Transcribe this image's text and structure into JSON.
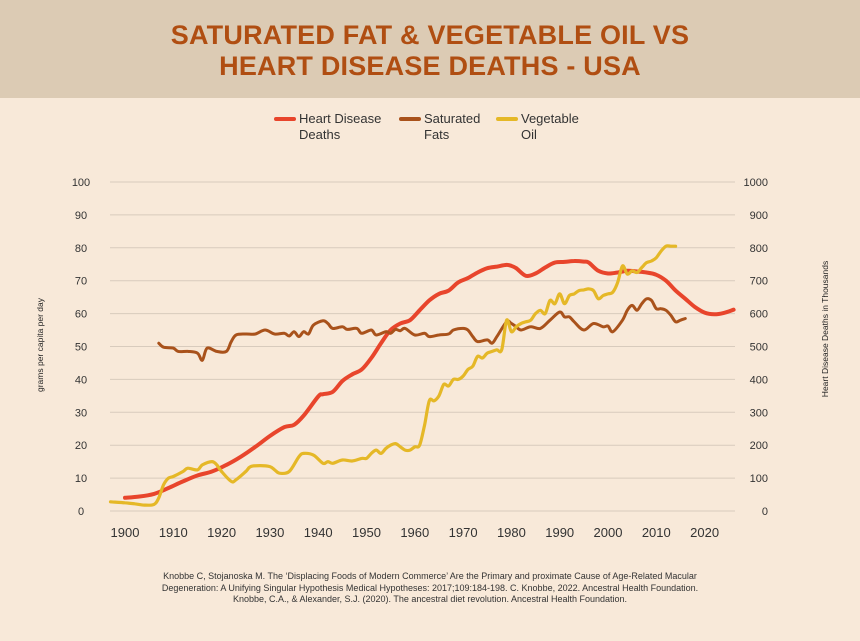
{
  "chart_data": {
    "type": "line",
    "title": "SATURATED FAT & VEGETABLE OIL VS\nHEART DISEASE DEATHS - USA",
    "ylabel_left": "grams per capita per day",
    "ylabel_right": "Heart Disease Deaths in Thousands",
    "xlim": [
      1897,
      2026
    ],
    "ylim_left": [
      0,
      100
    ],
    "ylim_right": [
      0,
      1000
    ],
    "x_ticks": [
      1900,
      1910,
      1920,
      1930,
      1940,
      1950,
      1960,
      1970,
      1980,
      1990,
      2000,
      2010,
      2020
    ],
    "y_ticks_left": [
      0,
      10,
      20,
      30,
      40,
      50,
      60,
      70,
      80,
      90,
      100
    ],
    "y_ticks_right": [
      0,
      100,
      200,
      300,
      400,
      500,
      600,
      700,
      800,
      900,
      1000
    ],
    "grid": true,
    "legend_position": "top",
    "legend": [
      {
        "label_lines": [
          "Heart Disease",
          "Deaths"
        ],
        "color": "#e8452c"
      },
      {
        "label_lines": [
          "Saturated",
          "Fats"
        ],
        "color": "#a9521b"
      },
      {
        "label_lines": [
          "Vegetable",
          "Oil"
        ],
        "color": "#e5b827"
      }
    ],
    "series": [
      {
        "name": "Heart Disease Deaths",
        "axis": "right",
        "color": "#e8452c",
        "points": [
          [
            1900,
            40
          ],
          [
            1903,
            44
          ],
          [
            1906,
            52
          ],
          [
            1909,
            70
          ],
          [
            1912,
            90
          ],
          [
            1915,
            108
          ],
          [
            1918,
            120
          ],
          [
            1921,
            140
          ],
          [
            1924,
            165
          ],
          [
            1927,
            195
          ],
          [
            1930,
            228
          ],
          [
            1933,
            255
          ],
          [
            1935,
            262
          ],
          [
            1937,
            290
          ],
          [
            1940,
            348
          ],
          [
            1941,
            355
          ],
          [
            1943,
            362
          ],
          [
            1945,
            395
          ],
          [
            1947,
            415
          ],
          [
            1949,
            430
          ],
          [
            1951,
            465
          ],
          [
            1953,
            510
          ],
          [
            1955,
            550
          ],
          [
            1957,
            570
          ],
          [
            1959,
            580
          ],
          [
            1961,
            610
          ],
          [
            1963,
            640
          ],
          [
            1965,
            660
          ],
          [
            1967,
            670
          ],
          [
            1969,
            695
          ],
          [
            1971,
            708
          ],
          [
            1973,
            725
          ],
          [
            1975,
            738
          ],
          [
            1977,
            743
          ],
          [
            1979,
            748
          ],
          [
            1980,
            745
          ],
          [
            1981,
            738
          ],
          [
            1983,
            715
          ],
          [
            1985,
            722
          ],
          [
            1987,
            740
          ],
          [
            1989,
            755
          ],
          [
            1991,
            757
          ],
          [
            1993,
            760
          ],
          [
            1995,
            758
          ],
          [
            1996,
            755
          ],
          [
            1998,
            730
          ],
          [
            2000,
            722
          ],
          [
            2002,
            725
          ],
          [
            2004,
            730
          ],
          [
            2006,
            728
          ],
          [
            2008,
            725
          ],
          [
            2010,
            718
          ],
          [
            2012,
            700
          ],
          [
            2014,
            670
          ],
          [
            2016,
            645
          ],
          [
            2018,
            620
          ],
          [
            2020,
            603
          ],
          [
            2022,
            598
          ],
          [
            2024,
            602
          ],
          [
            2026,
            612
          ]
        ]
      },
      {
        "name": "Saturated Fats",
        "axis": "left",
        "color": "#a9521b",
        "points": [
          [
            1907,
            51
          ],
          [
            1908,
            49.8
          ],
          [
            1910,
            49.5
          ],
          [
            1911,
            48.5
          ],
          [
            1913,
            48.5
          ],
          [
            1915,
            48
          ],
          [
            1916,
            45.8
          ],
          [
            1917,
            49.5
          ],
          [
            1919,
            48.5
          ],
          [
            1921,
            48.5
          ],
          [
            1922,
            51.5
          ],
          [
            1923,
            53.5
          ],
          [
            1925,
            53.8
          ],
          [
            1927,
            53.8
          ],
          [
            1929,
            55
          ],
          [
            1931,
            53.8
          ],
          [
            1933,
            54
          ],
          [
            1934,
            53.2
          ],
          [
            1935,
            54.5
          ],
          [
            1936,
            53
          ],
          [
            1937,
            54.5
          ],
          [
            1938,
            53.8
          ],
          [
            1939,
            56.5
          ],
          [
            1941,
            57.8
          ],
          [
            1942,
            57
          ],
          [
            1943,
            55.5
          ],
          [
            1945,
            56
          ],
          [
            1946,
            55.2
          ],
          [
            1948,
            55.5
          ],
          [
            1949,
            54
          ],
          [
            1951,
            55
          ],
          [
            1952,
            53.5
          ],
          [
            1954,
            54.5
          ],
          [
            1955,
            54
          ],
          [
            1956,
            55.2
          ],
          [
            1957,
            54.8
          ],
          [
            1958,
            55.5
          ],
          [
            1960,
            53.5
          ],
          [
            1962,
            54
          ],
          [
            1963,
            53
          ],
          [
            1965,
            53.5
          ],
          [
            1967,
            53.8
          ],
          [
            1968,
            55
          ],
          [
            1970,
            55.5
          ],
          [
            1971,
            55
          ],
          [
            1972,
            53
          ],
          [
            1973,
            51.5
          ],
          [
            1975,
            52
          ],
          [
            1976,
            51
          ],
          [
            1977,
            53
          ],
          [
            1979,
            57.5
          ],
          [
            1980,
            57
          ],
          [
            1981,
            56
          ],
          [
            1982,
            55
          ],
          [
            1984,
            56
          ],
          [
            1986,
            55.5
          ],
          [
            1988,
            58
          ],
          [
            1990,
            60.5
          ],
          [
            1991,
            59
          ],
          [
            1992,
            59
          ],
          [
            1993,
            57.5
          ],
          [
            1995,
            55
          ],
          [
            1997,
            57
          ],
          [
            1999,
            56
          ],
          [
            2000,
            56.2
          ],
          [
            2001,
            54.5
          ],
          [
            2003,
            58
          ],
          [
            2004,
            61
          ],
          [
            2005,
            62.5
          ],
          [
            2006,
            61
          ],
          [
            2007,
            63
          ],
          [
            2008,
            64.5
          ],
          [
            2009,
            64
          ],
          [
            2010,
            61.5
          ],
          [
            2011,
            61.5
          ],
          [
            2012,
            61
          ],
          [
            2013,
            59.5
          ],
          [
            2014,
            57.5
          ],
          [
            2015,
            58
          ],
          [
            2016,
            58.5
          ]
        ]
      },
      {
        "name": "Vegetable Oil",
        "axis": "left",
        "color": "#e5b827",
        "points": [
          [
            1897,
            2.8
          ],
          [
            1900,
            2.5
          ],
          [
            1902,
            2.2
          ],
          [
            1904,
            1.8
          ],
          [
            1906,
            2
          ],
          [
            1907,
            4
          ],
          [
            1908,
            8
          ],
          [
            1909,
            10
          ],
          [
            1910,
            10.5
          ],
          [
            1912,
            12
          ],
          [
            1913,
            13
          ],
          [
            1915,
            12.5
          ],
          [
            1916,
            14
          ],
          [
            1918,
            15
          ],
          [
            1919,
            14
          ],
          [
            1920,
            12
          ],
          [
            1922,
            9
          ],
          [
            1923,
            9.5
          ],
          [
            1925,
            12
          ],
          [
            1926,
            13.5
          ],
          [
            1928,
            13.8
          ],
          [
            1930,
            13.5
          ],
          [
            1931,
            12.5
          ],
          [
            1932,
            11.5
          ],
          [
            1934,
            12
          ],
          [
            1936,
            16.5
          ],
          [
            1937,
            17.5
          ],
          [
            1939,
            17
          ],
          [
            1941,
            14.5
          ],
          [
            1942,
            15
          ],
          [
            1943,
            14.5
          ],
          [
            1945,
            15.5
          ],
          [
            1947,
            15.2
          ],
          [
            1949,
            16
          ],
          [
            1950,
            16
          ],
          [
            1951,
            17.5
          ],
          [
            1952,
            18.5
          ],
          [
            1953,
            17.5
          ],
          [
            1954,
            19
          ],
          [
            1955,
            20
          ],
          [
            1956,
            20.5
          ],
          [
            1957,
            19.5
          ],
          [
            1958,
            18.5
          ],
          [
            1959,
            18.5
          ],
          [
            1960,
            19.5
          ],
          [
            1961,
            20
          ],
          [
            1962,
            26
          ],
          [
            1963,
            33.5
          ],
          [
            1964,
            33.5
          ],
          [
            1965,
            35
          ],
          [
            1966,
            38.5
          ],
          [
            1967,
            38
          ],
          [
            1968,
            40
          ],
          [
            1969,
            40
          ],
          [
            1970,
            41
          ],
          [
            1971,
            43
          ],
          [
            1972,
            44
          ],
          [
            1973,
            47
          ],
          [
            1974,
            46.5
          ],
          [
            1975,
            48
          ],
          [
            1976,
            48.5
          ],
          [
            1977,
            49
          ],
          [
            1978,
            49
          ],
          [
            1979,
            58
          ],
          [
            1980,
            54.5
          ],
          [
            1981,
            56
          ],
          [
            1982,
            57
          ],
          [
            1983,
            57.5
          ],
          [
            1984,
            58
          ],
          [
            1985,
            60
          ],
          [
            1986,
            61
          ],
          [
            1987,
            60
          ],
          [
            1988,
            64
          ],
          [
            1989,
            63
          ],
          [
            1990,
            66
          ],
          [
            1991,
            63
          ],
          [
            1992,
            65.5
          ],
          [
            1993,
            66
          ],
          [
            1994,
            67
          ],
          [
            1995,
            67.2
          ],
          [
            1996,
            67.5
          ],
          [
            1997,
            67
          ],
          [
            1998,
            64.5
          ],
          [
            1999,
            65.5
          ],
          [
            2000,
            66
          ],
          [
            2001,
            66.5
          ],
          [
            2002,
            69.5
          ],
          [
            2003,
            74.5
          ],
          [
            2004,
            72
          ],
          [
            2005,
            73
          ],
          [
            2006,
            72.5
          ],
          [
            2007,
            74
          ],
          [
            2008,
            75.5
          ],
          [
            2009,
            76
          ],
          [
            2010,
            77
          ],
          [
            2011,
            79
          ],
          [
            2012,
            80.5
          ],
          [
            2013,
            80.5
          ],
          [
            2014,
            80.5
          ]
        ]
      }
    ]
  },
  "source_lines": [
    "Knobbe C, Stojanoska M. The ‘Displacing Foods of Modern Commerce’ Are the Primary and proximate Cause of Age-Related Macular",
    "Degeneration: A Unifying Singular Hypothesis Medical Hypotheses: 2017;109:184-198. C. Knobbe, 2022. Ancestral Health Foundation.",
    "Knobbe, C.A., & Alexander, S.J. (2020). The ancestral diet revolution. Ancestral Health Foundation."
  ]
}
